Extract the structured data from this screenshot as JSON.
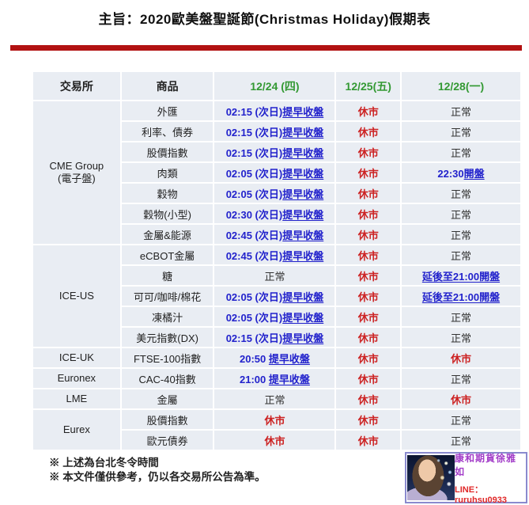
{
  "title": "主旨：2020歐美盤聖誕節(Christmas Holiday)假期表",
  "table": {
    "headers": [
      "交易所",
      "商品",
      "12/24 (四)",
      "12/25(五)",
      "12/28(一)"
    ],
    "groups": [
      {
        "exchange": [
          "CME Group",
          "(電子盤)"
        ],
        "rows": [
          {
            "product": "外匯",
            "d24": {
              "pre": "02:15 (次日)",
              "und": "提早收盤",
              "c": "blue"
            },
            "d25": {
              "pre": "休市",
              "c": "red"
            },
            "d28": {
              "pre": "正常",
              "c": "black"
            }
          },
          {
            "product": "利率、債券",
            "d24": {
              "pre": "02:15 (次日)",
              "und": "提早收盤",
              "c": "blue"
            },
            "d25": {
              "pre": "休市",
              "c": "red"
            },
            "d28": {
              "pre": "正常",
              "c": "black"
            }
          },
          {
            "product": "股價指數",
            "d24": {
              "pre": "02:15 (次日)",
              "und": "提早收盤",
              "c": "blue"
            },
            "d25": {
              "pre": "休市",
              "c": "red"
            },
            "d28": {
              "pre": "正常",
              "c": "black"
            }
          },
          {
            "product": "肉類",
            "d24": {
              "pre": "02:05 (次日)",
              "und": "提早收盤",
              "c": "blue"
            },
            "d25": {
              "pre": "休市",
              "c": "red"
            },
            "d28": {
              "pre": "22:30",
              "und": "開盤",
              "c": "blue"
            }
          },
          {
            "product": "穀物",
            "d24": {
              "pre": "02:05 (次日)",
              "und": "提早收盤",
              "c": "blue"
            },
            "d25": {
              "pre": "休市",
              "c": "red"
            },
            "d28": {
              "pre": "正常",
              "c": "black"
            }
          },
          {
            "product": "穀物(小型)",
            "d24": {
              "pre": "02:30 (次日)",
              "und": "提早收盤",
              "c": "blue"
            },
            "d25": {
              "pre": "休市",
              "c": "red"
            },
            "d28": {
              "pre": "正常",
              "c": "black"
            }
          },
          {
            "product": "金屬&能源",
            "d24": {
              "pre": "02:45 (次日)",
              "und": "提早收盤",
              "c": "blue"
            },
            "d25": {
              "pre": "休市",
              "c": "red"
            },
            "d28": {
              "pre": "正常",
              "c": "black"
            }
          }
        ]
      },
      {
        "exchange": [
          "ICE-US"
        ],
        "rows": [
          {
            "product": "eCBOT金屬",
            "d24": {
              "pre": "02:45 (次日)",
              "und": "提早收盤",
              "c": "blue"
            },
            "d25": {
              "pre": "休市",
              "c": "red"
            },
            "d28": {
              "pre": "正常",
              "c": "black"
            }
          },
          {
            "product": "糖",
            "d24": {
              "pre": "正常",
              "c": "black"
            },
            "d25": {
              "pre": "休市",
              "c": "red"
            },
            "d28": {
              "und": "延後至21:00開盤",
              "c": "blue"
            }
          },
          {
            "product": "可可/咖啡/棉花",
            "d24": {
              "pre": "02:05 (次日)",
              "und": "提早收盤",
              "c": "blue"
            },
            "d25": {
              "pre": "休市",
              "c": "red"
            },
            "d28": {
              "und": "延後至21:00開盤",
              "c": "blue"
            }
          },
          {
            "product": "凍橘汁",
            "d24": {
              "pre": "02:05 (次日)",
              "und": "提早收盤",
              "c": "blue"
            },
            "d25": {
              "pre": "休市",
              "c": "red"
            },
            "d28": {
              "pre": "正常",
              "c": "black"
            }
          },
          {
            "product": "美元指數(DX)",
            "d24": {
              "pre": "02:15 (次日)",
              "und": "提早收盤",
              "c": "blue"
            },
            "d25": {
              "pre": "休市",
              "c": "red"
            },
            "d28": {
              "pre": "正常",
              "c": "black"
            }
          }
        ]
      },
      {
        "exchange": [
          "ICE-UK"
        ],
        "rows": [
          {
            "product": "FTSE-100指數",
            "d24": {
              "pre": "20:50 ",
              "und": "提早收盤",
              "c": "blue"
            },
            "d25": {
              "pre": "休市",
              "c": "red"
            },
            "d28": {
              "pre": "休市",
              "c": "red"
            }
          }
        ]
      },
      {
        "exchange": [
          "Euronex"
        ],
        "rows": [
          {
            "product": "CAC-40指數",
            "d24": {
              "pre": "21:00 ",
              "und": "提早收盤",
              "c": "blue"
            },
            "d25": {
              "pre": "休市",
              "c": "red"
            },
            "d28": {
              "pre": "正常",
              "c": "black"
            }
          }
        ]
      },
      {
        "exchange": [
          "LME"
        ],
        "rows": [
          {
            "product": "金屬",
            "d24": {
              "pre": "正常",
              "c": "black"
            },
            "d25": {
              "pre": "休市",
              "c": "red"
            },
            "d28": {
              "pre": "休市",
              "c": "red"
            }
          }
        ]
      },
      {
        "exchange": [
          "Eurex"
        ],
        "rows": [
          {
            "product": "股價指數",
            "d24": {
              "pre": "休市",
              "c": "red"
            },
            "d25": {
              "pre": "休市",
              "c": "red"
            },
            "d28": {
              "pre": "正常",
              "c": "black"
            }
          },
          {
            "product": "歐元債券",
            "d24": {
              "pre": "休市",
              "c": "red"
            },
            "d25": {
              "pre": "休市",
              "c": "red"
            },
            "d28": {
              "pre": "正常",
              "c": "black"
            }
          }
        ]
      }
    ]
  },
  "notes": [
    "※ 上述為台北冬令時間",
    "※ 本文件僅供參考，仍以各交易所公告為準。"
  ],
  "badge": {
    "name": "康和期貨徐雅如",
    "line_id": "LINE：ruruhsu0933",
    "photo_icon": "profile-photo"
  },
  "colors": {
    "date_green": "#339933",
    "early_close_blue": "#2222cc",
    "closed_red": "#cc2222",
    "normal_black": "#333333",
    "title_rule_red": "#b21212",
    "cell_bg": "#e9edf3",
    "badge_border": "#8a8ace",
    "contact_name_purple": "#a23cc8",
    "line_id_red": "#e02828"
  }
}
